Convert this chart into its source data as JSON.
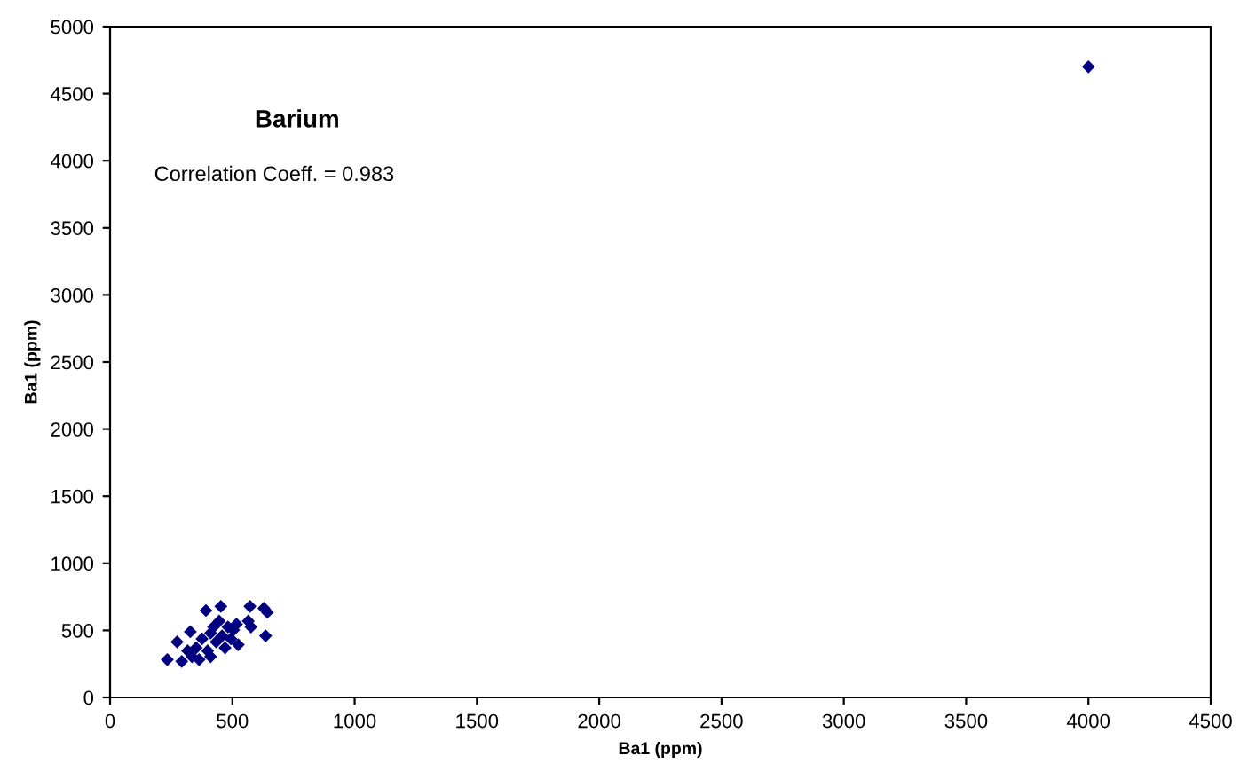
{
  "chart_data": {
    "type": "scatter",
    "title": "Barium",
    "xlabel": "Ba1 (ppm)",
    "ylabel": "Ba1 (ppm)",
    "annotations": [
      "Correlation Coeff. = 0.983"
    ],
    "marker": "diamond",
    "grid": false,
    "legend": false,
    "xlim": [
      0,
      4500
    ],
    "ylim": [
      0,
      5000
    ],
    "xticks": [
      0,
      500,
      1000,
      1500,
      2000,
      2500,
      3000,
      3500,
      4000,
      4500
    ],
    "yticks": [
      0,
      500,
      1000,
      1500,
      2000,
      2500,
      3000,
      3500,
      4000,
      4500,
      5000
    ],
    "series": [
      {
        "color": "#000080",
        "x": [
          234,
          274,
          293,
          328,
          335,
          352,
          364,
          376,
          392,
          399,
          411,
          423,
          434,
          446,
          453,
          458,
          470,
          482,
          494,
          505,
          517,
          524,
          565,
          572,
          576,
          629,
          643,
          636,
          411,
          317,
          4000
        ],
        "values": [
          282,
          414,
          269,
          490,
          304,
          370,
          282,
          437,
          648,
          348,
          480,
          525,
          414,
          569,
          679,
          459,
          370,
          525,
          437,
          503,
          546,
          393,
          569,
          679,
          525,
          665,
          635,
          459,
          304,
          348,
          4700
        ]
      }
    ]
  }
}
